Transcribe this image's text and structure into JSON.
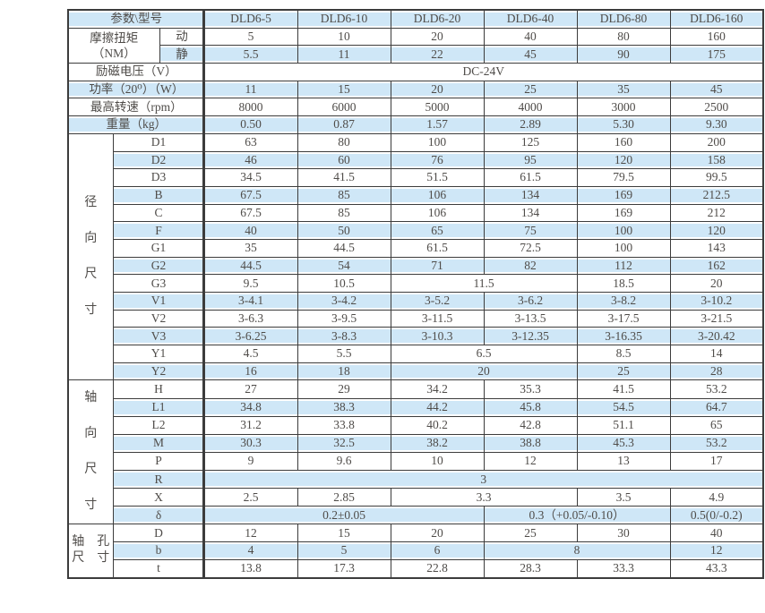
{
  "colors": {
    "stripe": "#cfe7f7",
    "border": "#3c3c3c",
    "text": "#4f4c49",
    "background": "#ffffff"
  },
  "table": {
    "corner_label": "参数\\型号",
    "models": [
      "DLD6-5",
      "DLD6-10",
      "DLD6-20",
      "DLD6-40",
      "DLD6-80",
      "DLD6-160"
    ],
    "rows": [
      {
        "s": true,
        "cells": [
          {
            "t": "参数\\型号",
            "cs": 3
          },
          {
            "t": "DLD6-5"
          },
          {
            "t": "DLD6-10"
          },
          {
            "t": "DLD6-20"
          },
          {
            "t": "DLD6-40"
          },
          {
            "t": "DLD6-80"
          },
          {
            "t": "DLD6-160"
          }
        ]
      },
      {
        "s": false,
        "cells": [
          {
            "t": "摩擦扭矩\n（NM）",
            "cs": 2,
            "rs": 2,
            "p": true
          },
          {
            "t": "动"
          },
          {
            "t": "5"
          },
          {
            "t": "10"
          },
          {
            "t": "20"
          },
          {
            "t": "40"
          },
          {
            "t": "80"
          },
          {
            "t": "160"
          }
        ]
      },
      {
        "s": true,
        "cells": [
          {
            "t": "静"
          },
          {
            "t": "5.5"
          },
          {
            "t": "11"
          },
          {
            "t": "22"
          },
          {
            "t": "45"
          },
          {
            "t": "90"
          },
          {
            "t": "175"
          }
        ]
      },
      {
        "s": false,
        "cells": [
          {
            "t": "励磁电压（V）",
            "cs": 3
          },
          {
            "t": "DC-24V",
            "cs": 6
          }
        ]
      },
      {
        "s": true,
        "cells": [
          {
            "t": "功率（20⁰）（W）",
            "cs": 3
          },
          {
            "t": "11"
          },
          {
            "t": "15"
          },
          {
            "t": "20"
          },
          {
            "t": "25"
          },
          {
            "t": "35"
          },
          {
            "t": "45"
          }
        ]
      },
      {
        "s": false,
        "cells": [
          {
            "t": "最高转速（rpm）",
            "cs": 3
          },
          {
            "t": "8000"
          },
          {
            "t": "6000"
          },
          {
            "t": "5000"
          },
          {
            "t": "4000"
          },
          {
            "t": "3000"
          },
          {
            "t": "2500"
          }
        ]
      },
      {
        "s": true,
        "cells": [
          {
            "t": "重量（kg）",
            "cs": 3
          },
          {
            "t": "0.50"
          },
          {
            "t": "0.87"
          },
          {
            "t": "1.57"
          },
          {
            "t": "2.89"
          },
          {
            "t": "5.30"
          },
          {
            "t": "9.30"
          }
        ]
      },
      {
        "s": false,
        "cells": [
          {
            "t": "径\n向\n尺\n寸",
            "rs": 14,
            "v": true
          },
          {
            "t": "D1",
            "cs": 2
          },
          {
            "t": "63"
          },
          {
            "t": "80"
          },
          {
            "t": "100"
          },
          {
            "t": "125"
          },
          {
            "t": "160"
          },
          {
            "t": "200"
          }
        ]
      },
      {
        "s": true,
        "cells": [
          {
            "t": "D2",
            "cs": 2
          },
          {
            "t": "46"
          },
          {
            "t": "60"
          },
          {
            "t": "76"
          },
          {
            "t": "95"
          },
          {
            "t": "120"
          },
          {
            "t": "158"
          }
        ]
      },
      {
        "s": false,
        "cells": [
          {
            "t": "D3",
            "cs": 2
          },
          {
            "t": "34.5"
          },
          {
            "t": "41.5"
          },
          {
            "t": "51.5"
          },
          {
            "t": "61.5"
          },
          {
            "t": "79.5"
          },
          {
            "t": "99.5"
          }
        ]
      },
      {
        "s": true,
        "cells": [
          {
            "t": "B",
            "cs": 2
          },
          {
            "t": "67.5"
          },
          {
            "t": "85"
          },
          {
            "t": "106"
          },
          {
            "t": "134"
          },
          {
            "t": "169"
          },
          {
            "t": "212.5"
          }
        ]
      },
      {
        "s": false,
        "cells": [
          {
            "t": "C",
            "cs": 2
          },
          {
            "t": "67.5"
          },
          {
            "t": "85"
          },
          {
            "t": "106"
          },
          {
            "t": "134"
          },
          {
            "t": "169"
          },
          {
            "t": "212"
          }
        ]
      },
      {
        "s": true,
        "cells": [
          {
            "t": "F",
            "cs": 2
          },
          {
            "t": "40"
          },
          {
            "t": "50"
          },
          {
            "t": "65"
          },
          {
            "t": "75"
          },
          {
            "t": "100"
          },
          {
            "t": "120"
          }
        ]
      },
      {
        "s": false,
        "cells": [
          {
            "t": "G1",
            "cs": 2
          },
          {
            "t": "35"
          },
          {
            "t": "44.5"
          },
          {
            "t": "61.5"
          },
          {
            "t": "72.5"
          },
          {
            "t": "100"
          },
          {
            "t": "143"
          }
        ]
      },
      {
        "s": true,
        "cells": [
          {
            "t": "G2",
            "cs": 2
          },
          {
            "t": "44.5"
          },
          {
            "t": "54"
          },
          {
            "t": "71"
          },
          {
            "t": "82"
          },
          {
            "t": "112"
          },
          {
            "t": "162"
          }
        ]
      },
      {
        "s": false,
        "cells": [
          {
            "t": "G3",
            "cs": 2
          },
          {
            "t": "9.5"
          },
          {
            "t": "10.5"
          },
          {
            "t": "11.5",
            "cs": 2
          },
          {
            "t": "18.5"
          },
          {
            "t": "20"
          }
        ]
      },
      {
        "s": true,
        "cells": [
          {
            "t": "V1",
            "cs": 2
          },
          {
            "t": "3-4.1"
          },
          {
            "t": "3-4.2"
          },
          {
            "t": "3-5.2"
          },
          {
            "t": "3-6.2"
          },
          {
            "t": "3-8.2"
          },
          {
            "t": "3-10.2"
          }
        ]
      },
      {
        "s": false,
        "cells": [
          {
            "t": "V2",
            "cs": 2
          },
          {
            "t": "3-6.3"
          },
          {
            "t": "3-9.5"
          },
          {
            "t": "3-11.5"
          },
          {
            "t": "3-13.5"
          },
          {
            "t": "3-17.5"
          },
          {
            "t": "3-21.5"
          }
        ]
      },
      {
        "s": true,
        "cells": [
          {
            "t": "V3",
            "cs": 2
          },
          {
            "t": "3-6.25"
          },
          {
            "t": "3-8.3"
          },
          {
            "t": "3-10.3"
          },
          {
            "t": "3-12.35"
          },
          {
            "t": "3-16.35"
          },
          {
            "t": "3-20.42"
          }
        ]
      },
      {
        "s": false,
        "cells": [
          {
            "t": "Y1",
            "cs": 2
          },
          {
            "t": "4.5"
          },
          {
            "t": "5.5"
          },
          {
            "t": "6.5",
            "cs": 2
          },
          {
            "t": "8.5"
          },
          {
            "t": "14"
          }
        ]
      },
      {
        "s": true,
        "cells": [
          {
            "t": "Y2",
            "cs": 2
          },
          {
            "t": "16"
          },
          {
            "t": "18"
          },
          {
            "t": "20",
            "cs": 2
          },
          {
            "t": "25"
          },
          {
            "t": "28"
          }
        ]
      },
      {
        "s": false,
        "cells": [
          {
            "t": "轴\n向\n尺\n寸",
            "rs": 8,
            "v": true
          },
          {
            "t": "H",
            "cs": 2
          },
          {
            "t": "27"
          },
          {
            "t": "29"
          },
          {
            "t": "34.2"
          },
          {
            "t": "35.3"
          },
          {
            "t": "41.5"
          },
          {
            "t": "53.2"
          }
        ]
      },
      {
        "s": true,
        "cells": [
          {
            "t": "L1",
            "cs": 2
          },
          {
            "t": "34.8"
          },
          {
            "t": "38.3"
          },
          {
            "t": "44.2"
          },
          {
            "t": "45.8"
          },
          {
            "t": "54.5"
          },
          {
            "t": "64.7"
          }
        ]
      },
      {
        "s": false,
        "cells": [
          {
            "t": "L2",
            "cs": 2
          },
          {
            "t": "31.2"
          },
          {
            "t": "33.8"
          },
          {
            "t": "40.2"
          },
          {
            "t": "42.8"
          },
          {
            "t": "51.1"
          },
          {
            "t": "65"
          }
        ]
      },
      {
        "s": true,
        "cells": [
          {
            "t": "M",
            "cs": 2
          },
          {
            "t": "30.3"
          },
          {
            "t": "32.5"
          },
          {
            "t": "38.2"
          },
          {
            "t": "38.8"
          },
          {
            "t": "45.3"
          },
          {
            "t": "53.2"
          }
        ]
      },
      {
        "s": false,
        "cells": [
          {
            "t": "P",
            "cs": 2
          },
          {
            "t": "9"
          },
          {
            "t": "9.6"
          },
          {
            "t": "10"
          },
          {
            "t": "12"
          },
          {
            "t": "13"
          },
          {
            "t": "17"
          }
        ]
      },
      {
        "s": true,
        "cells": [
          {
            "t": "R",
            "cs": 2
          },
          {
            "t": "3",
            "cs": 6
          }
        ]
      },
      {
        "s": false,
        "cells": [
          {
            "t": "X",
            "cs": 2
          },
          {
            "t": "2.5"
          },
          {
            "t": "2.85"
          },
          {
            "t": "3.3",
            "cs": 2
          },
          {
            "t": "3.5"
          },
          {
            "t": "4.9"
          }
        ]
      },
      {
        "s": true,
        "cells": [
          {
            "t": "δ",
            "cs": 2
          },
          {
            "t": "0.2±0.05",
            "cs": 3
          },
          {
            "t": "0.3（+0.05/-0.10）",
            "cs": 2
          },
          {
            "t": "0.5(0/-0.2)"
          }
        ]
      },
      {
        "s": false,
        "cells": [
          {
            "t": "轴　孔\n尺　寸",
            "rs": 3,
            "v2": true
          },
          {
            "t": "D",
            "cs": 2
          },
          {
            "t": "12"
          },
          {
            "t": "15"
          },
          {
            "t": "20"
          },
          {
            "t": "25"
          },
          {
            "t": "30"
          },
          {
            "t": "40"
          }
        ]
      },
      {
        "s": true,
        "cells": [
          {
            "t": "b",
            "cs": 2
          },
          {
            "t": "4"
          },
          {
            "t": "5"
          },
          {
            "t": "6"
          },
          {
            "t": "8",
            "cs": 2
          },
          {
            "t": "12"
          }
        ]
      },
      {
        "s": false,
        "cells": [
          {
            "t": "t",
            "cs": 2
          },
          {
            "t": "13.8"
          },
          {
            "t": "17.3"
          },
          {
            "t": "22.8"
          },
          {
            "t": "28.3"
          },
          {
            "t": "33.3"
          },
          {
            "t": "43.3"
          }
        ]
      }
    ]
  }
}
